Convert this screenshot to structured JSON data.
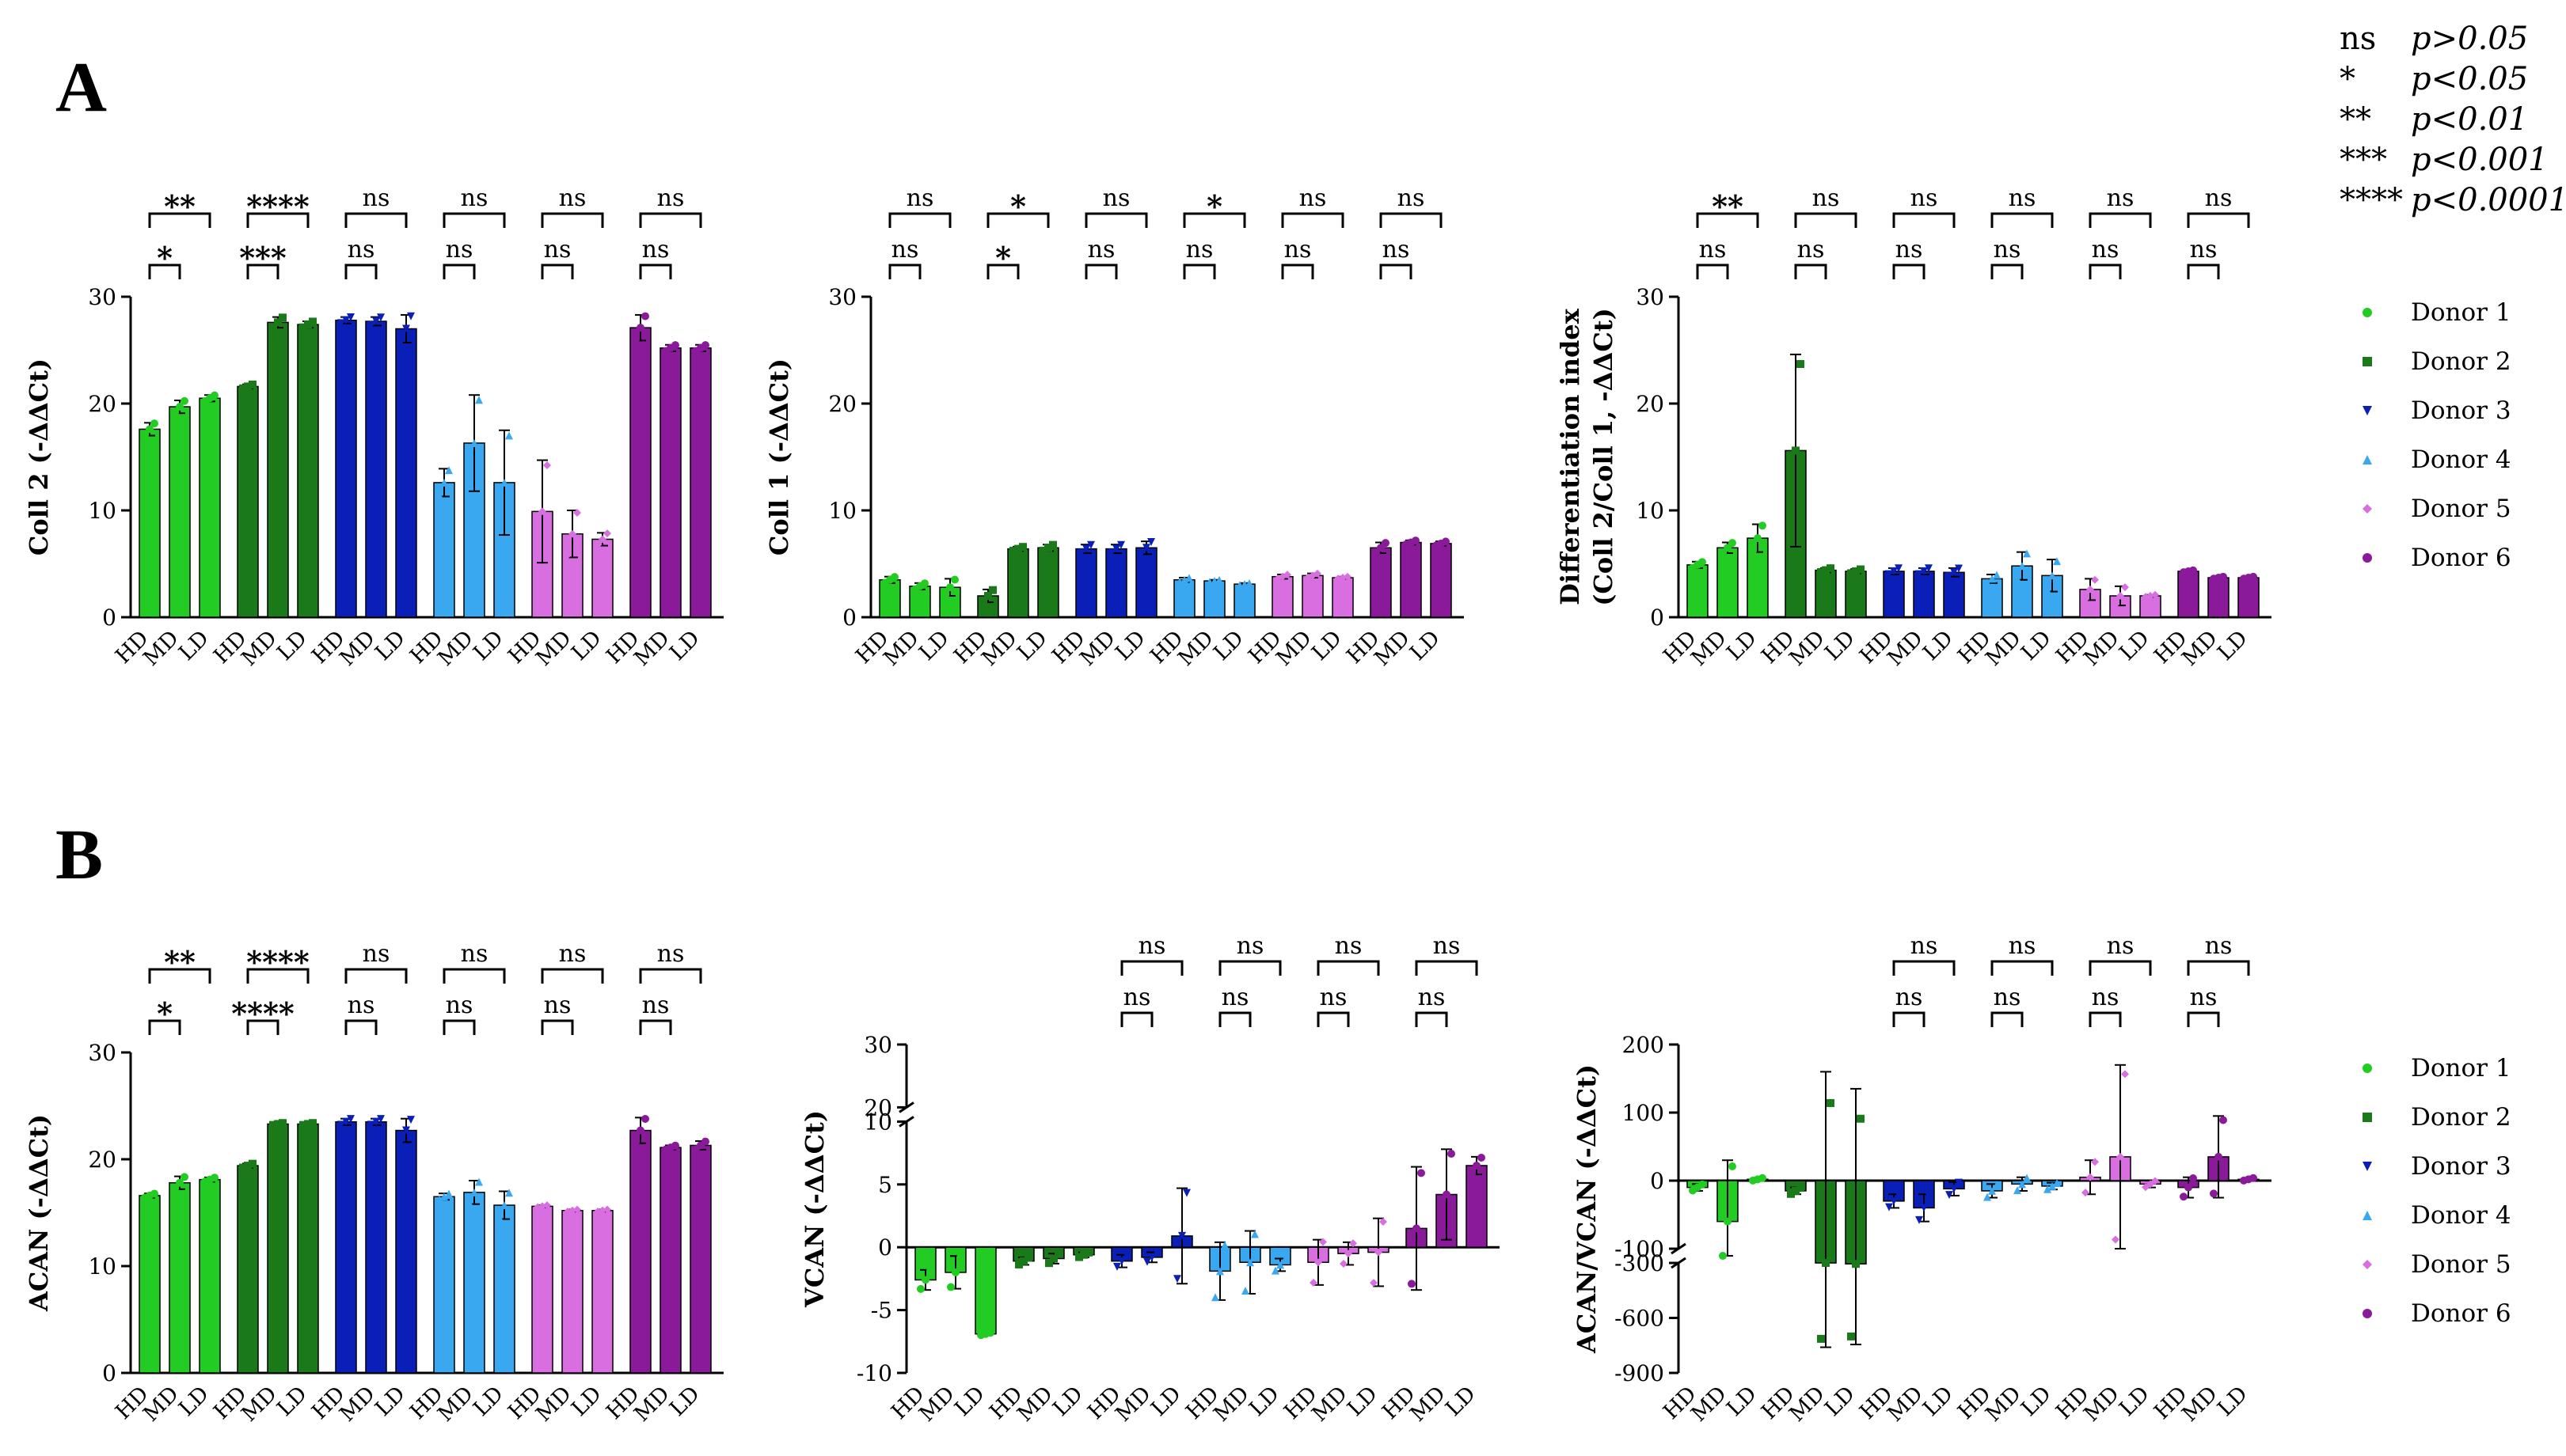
{
  "figure": {
    "panel_labels": [
      "A",
      "B"
    ],
    "p_legend": [
      {
        "symbol": "ns",
        "text": "p>0.05"
      },
      {
        "symbol": "*",
        "text": "p<0.05"
      },
      {
        "symbol": "**",
        "text": "p<0.01"
      },
      {
        "symbol": "***",
        "text": "p<0.001"
      },
      {
        "symbol": "****",
        "text": "p<0.0001"
      }
    ],
    "donor_legend": {
      "entries": [
        "Donor 1",
        "Donor 2",
        "Donor 3",
        "Donor 4",
        "Donor 5",
        "Donor 6"
      ],
      "colors": [
        "#22cc22",
        "#1a7a1a",
        "#0a1fb8",
        "#3aa8f0",
        "#d86ee0",
        "#8a1a9a"
      ],
      "markers": [
        "circle",
        "square",
        "triangle-down",
        "triangle-up",
        "diamond",
        "circle"
      ]
    }
  },
  "chart_data": [
    {
      "type": "bar",
      "id": "A1",
      "title": "",
      "ylabel": "Coll 2 (-ΔΔCt)",
      "ylim": [
        0,
        30
      ],
      "yticks": [
        "0",
        "10",
        "20",
        "30"
      ],
      "categories": [
        "HD",
        "MD",
        "LD"
      ],
      "groups": [
        "Donor 1",
        "Donor 2",
        "Donor 3",
        "Donor 4",
        "Donor 5",
        "Donor 6"
      ],
      "series": [
        {
          "name": "Donor 1",
          "values": [
            17.6,
            19.7,
            20.5
          ],
          "errors": [
            0.6,
            0.6,
            0.3
          ]
        },
        {
          "name": "Donor 2",
          "values": [
            21.6,
            27.6,
            27.4
          ],
          "errors": [
            0.2,
            0.5,
            0.3
          ]
        },
        {
          "name": "Donor 3",
          "values": [
            27.8,
            27.7,
            27.0
          ],
          "errors": [
            0.3,
            0.4,
            1.3
          ]
        },
        {
          "name": "Donor 4",
          "values": [
            12.6,
            16.3,
            12.6
          ],
          "errors": [
            1.3,
            4.5,
            4.9
          ]
        },
        {
          "name": "Donor 5",
          "values": [
            9.9,
            7.8,
            7.3
          ],
          "errors": [
            4.8,
            2.2,
            0.6
          ]
        },
        {
          "name": "Donor 6",
          "values": [
            27.1,
            25.2,
            25.2
          ],
          "errors": [
            1.2,
            0.3,
            0.3
          ]
        }
      ],
      "sig_hd_ld": [
        "**",
        "****",
        "ns",
        "ns",
        "ns",
        "ns"
      ],
      "sig_hd_md": [
        "*",
        "***",
        "ns",
        "ns",
        "ns",
        "ns"
      ]
    },
    {
      "type": "bar",
      "id": "A2",
      "title": "",
      "ylabel": "Coll 1 (-ΔΔCt)",
      "ylim": [
        0,
        30
      ],
      "yticks": [
        "0",
        "10",
        "20",
        "30"
      ],
      "categories": [
        "HD",
        "MD",
        "LD"
      ],
      "groups": [
        "Donor 1",
        "Donor 2",
        "Donor 3",
        "Donor 4",
        "Donor 5",
        "Donor 6"
      ],
      "series": [
        {
          "name": "Donor 1",
          "values": [
            3.5,
            2.9,
            2.8
          ],
          "errors": [
            0.3,
            0.3,
            0.8
          ]
        },
        {
          "name": "Donor 2",
          "values": [
            2.0,
            6.4,
            6.5
          ],
          "errors": [
            0.6,
            0.2,
            0.3
          ]
        },
        {
          "name": "Donor 3",
          "values": [
            6.4,
            6.4,
            6.5
          ],
          "errors": [
            0.4,
            0.4,
            0.6
          ]
        },
        {
          "name": "Donor 4",
          "values": [
            3.5,
            3.4,
            3.1
          ],
          "errors": [
            0.2,
            0.1,
            0.1
          ]
        },
        {
          "name": "Donor 5",
          "values": [
            3.8,
            3.9,
            3.7
          ],
          "errors": [
            0.2,
            0.2,
            0.1
          ]
        },
        {
          "name": "Donor 6",
          "values": [
            6.5,
            7.0,
            6.9
          ],
          "errors": [
            0.5,
            0.2,
            0.2
          ]
        }
      ],
      "sig_hd_ld": [
        "ns",
        "*",
        "ns",
        "*",
        "ns",
        "ns"
      ],
      "sig_hd_md": [
        "ns",
        "*",
        "ns",
        "ns",
        "ns",
        "ns"
      ]
    },
    {
      "type": "bar",
      "id": "A3",
      "title": "",
      "ylabel": [
        "Differentiation index",
        "(Coll 2/Coll 1, -ΔΔCt)"
      ],
      "ylim": [
        0,
        30
      ],
      "yticks": [
        "0",
        "10",
        "20",
        "30"
      ],
      "categories": [
        "HD",
        "MD",
        "LD"
      ],
      "groups": [
        "Donor 1",
        "Donor 2",
        "Donor 3",
        "Donor 4",
        "Donor 5",
        "Donor 6"
      ],
      "series": [
        {
          "name": "Donor 1",
          "values": [
            4.9,
            6.5,
            7.4
          ],
          "errors": [
            0.3,
            0.5,
            1.3
          ]
        },
        {
          "name": "Donor 2",
          "values": [
            15.6,
            4.4,
            4.3
          ],
          "errors": [
            9.0,
            0.2,
            0.2
          ]
        },
        {
          "name": "Donor 3",
          "values": [
            4.3,
            4.3,
            4.2
          ],
          "errors": [
            0.3,
            0.3,
            0.4
          ]
        },
        {
          "name": "Donor 4",
          "values": [
            3.6,
            4.8,
            3.9
          ],
          "errors": [
            0.4,
            1.3,
            1.5
          ]
        },
        {
          "name": "Donor 5",
          "values": [
            2.6,
            2.0,
            2.0
          ],
          "errors": [
            1.0,
            0.9,
            0.1
          ]
        },
        {
          "name": "Donor 6",
          "values": [
            4.3,
            3.7,
            3.7
          ],
          "errors": [
            0.1,
            0.1,
            0.1
          ]
        }
      ],
      "sig_hd_ld": [
        "**",
        "ns",
        "ns",
        "ns",
        "ns",
        "ns"
      ],
      "sig_hd_md": [
        "ns",
        "ns",
        "ns",
        "ns",
        "ns",
        "ns"
      ]
    },
    {
      "type": "bar",
      "id": "B1",
      "title": "",
      "ylabel": "ACAN (-ΔΔCt)",
      "ylim": [
        0,
        30
      ],
      "yticks": [
        "0",
        "10",
        "20",
        "30"
      ],
      "categories": [
        "HD",
        "MD",
        "LD"
      ],
      "groups": [
        "Donor 1",
        "Donor 2",
        "Donor 3",
        "Donor 4",
        "Donor 5",
        "Donor 6"
      ],
      "series": [
        {
          "name": "Donor 1",
          "values": [
            16.6,
            17.8,
            18.1
          ],
          "errors": [
            0.2,
            0.6,
            0.2
          ]
        },
        {
          "name": "Donor 2",
          "values": [
            19.4,
            23.3,
            23.3
          ],
          "errors": [
            0.2,
            0.1,
            0.1
          ]
        },
        {
          "name": "Donor 3",
          "values": [
            23.5,
            23.5,
            22.7
          ],
          "errors": [
            0.3,
            0.3,
            1.1
          ]
        },
        {
          "name": "Donor 4",
          "values": [
            16.5,
            16.9,
            15.7
          ],
          "errors": [
            0.3,
            1.1,
            1.3
          ]
        },
        {
          "name": "Donor 5",
          "values": [
            15.6,
            15.2,
            15.2
          ],
          "errors": [
            0.1,
            0.1,
            0.1
          ]
        },
        {
          "name": "Donor 6",
          "values": [
            22.7,
            21.1,
            21.3
          ],
          "errors": [
            1.2,
            0.2,
            0.4
          ]
        }
      ],
      "sig_hd_ld": [
        "**",
        "****",
        "ns",
        "ns",
        "ns",
        "ns"
      ],
      "sig_hd_md": [
        "*",
        "****",
        "ns",
        "ns",
        "ns",
        "ns"
      ]
    },
    {
      "type": "bar",
      "id": "B2",
      "title": "",
      "ylabel": "VCAN (-ΔΔCt)",
      "ylim": [
        -10,
        30
      ],
      "yticks": [
        "-10",
        "-5",
        "0",
        "5",
        "10",
        "20",
        "30"
      ],
      "axis_break": [
        10,
        20
      ],
      "categories": [
        "HD",
        "MD",
        "LD"
      ],
      "groups": [
        "Donor 1",
        "Donor 2",
        "Donor 3",
        "Donor 4",
        "Donor 5",
        "Donor 6"
      ],
      "series": [
        {
          "name": "Donor 1",
          "values": [
            -2.6,
            -2.0,
            -6.9
          ],
          "errors": [
            0.8,
            1.3,
            0.1
          ]
        },
        {
          "name": "Donor 2",
          "values": [
            -1.1,
            -0.9,
            -0.6
          ],
          "errors": [
            0.3,
            0.4,
            0.2
          ]
        },
        {
          "name": "Donor 3",
          "values": [
            -1.1,
            -0.8,
            0.9
          ],
          "errors": [
            0.5,
            0.4,
            3.8
          ]
        },
        {
          "name": "Donor 4",
          "values": [
            -1.9,
            -1.2,
            -1.4
          ],
          "errors": [
            2.3,
            2.5,
            0.5
          ]
        },
        {
          "name": "Donor 5",
          "values": [
            -1.2,
            -0.5,
            -0.4
          ],
          "errors": [
            1.8,
            0.9,
            2.7
          ]
        },
        {
          "name": "Donor 6",
          "values": [
            1.5,
            4.2,
            6.5
          ],
          "errors": [
            4.9,
            3.6,
            0.7
          ]
        }
      ],
      "sig_hd_ld": [
        "",
        "",
        "ns",
        "ns",
        "ns",
        "ns"
      ],
      "sig_hd_md": [
        "",
        "",
        "ns",
        "ns",
        "ns",
        "ns"
      ]
    },
    {
      "type": "bar",
      "id": "B3",
      "title": "",
      "ylabel": "ACAN/VCAN (-ΔΔCt)",
      "ylim": [
        -900,
        200
      ],
      "yticks": [
        "-900",
        "-600",
        "-300",
        "-100",
        "0",
        "100",
        "200"
      ],
      "axis_break": [
        -300,
        -100
      ],
      "categories": [
        "HD",
        "MD",
        "LD"
      ],
      "groups": [
        "Donor 1",
        "Donor 2",
        "Donor 3",
        "Donor 4",
        "Donor 5",
        "Donor 6"
      ],
      "series": [
        {
          "name": "Donor 1",
          "values": [
            -10,
            -60,
            2
          ],
          "errors": [
            5,
            90,
            2
          ]
        },
        {
          "name": "Donor 2",
          "values": [
            -15,
            -300,
            -305
          ],
          "errors": [
            5,
            460,
            440
          ]
        },
        {
          "name": "Donor 3",
          "values": [
            -30,
            -40,
            -12
          ],
          "errors": [
            10,
            20,
            10
          ]
        },
        {
          "name": "Donor 4",
          "values": [
            -15,
            -5,
            -8
          ],
          "errors": [
            10,
            10,
            5
          ]
        },
        {
          "name": "Donor 5",
          "values": [
            5,
            35,
            -5
          ],
          "errors": [
            25,
            135,
            5
          ]
        },
        {
          "name": "Donor 6",
          "values": [
            -10,
            35,
            2
          ],
          "errors": [
            15,
            60,
            2
          ]
        }
      ],
      "sig_hd_ld": [
        "",
        "",
        "ns",
        "ns",
        "ns",
        "ns"
      ],
      "sig_hd_md": [
        "",
        "",
        "ns",
        "ns",
        "ns",
        "ns"
      ]
    }
  ]
}
